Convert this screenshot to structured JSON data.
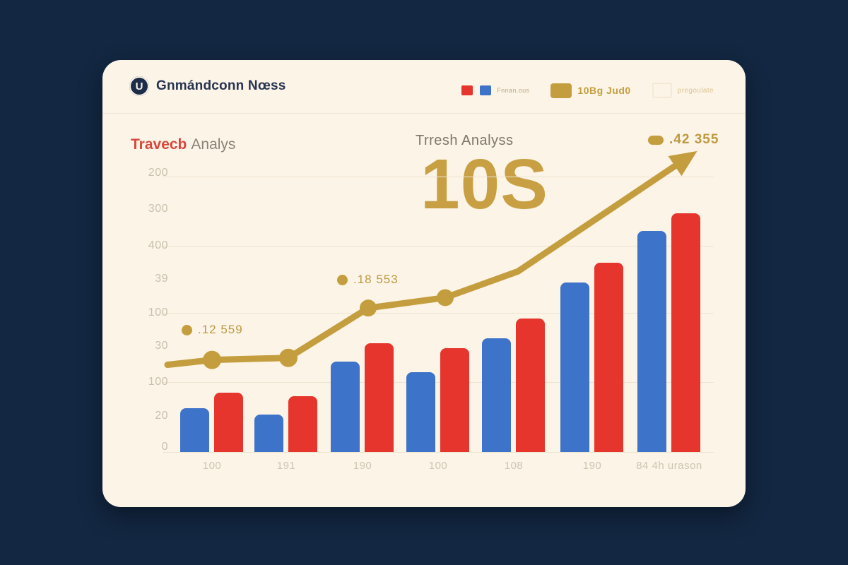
{
  "colors": {
    "page_bg": "#132742",
    "card_bg": "#fcf4e7",
    "navy": "#273450",
    "red": "#e6352d",
    "blue": "#3d73c9",
    "gold": "#c49e3e",
    "tick_label": "#c9c0ad",
    "gray_title": "#7e7769",
    "red_title": "#d8473c"
  },
  "header": {
    "logo_glyph": "U",
    "title": "Gnmándconn Nœss",
    "legend": [
      {
        "label": "Fnnan.ous"
      },
      {
        "label": "10Bg Jud0"
      },
      {
        "label": "pregoulate"
      }
    ]
  },
  "titles": {
    "left_red": "Travecb",
    "left_gray": "Analys",
    "center_sub": "Trresh Analyss",
    "center_big": "10S"
  },
  "annotations": {
    "low": ".12 559",
    "mid": ".18 553",
    "top": ".42 355"
  },
  "chart_data": {
    "type": "bar",
    "title": "Trresh Analyss 10S",
    "categories": [
      "100",
      "191",
      "190",
      "100",
      "108",
      "190",
      "84 4h urason"
    ],
    "series": [
      {
        "name": "blue bars",
        "type": "bar",
        "color": "#3d73c9",
        "values": [
          63,
          54,
          131,
          115,
          164,
          245,
          319
        ]
      },
      {
        "name": "red bars",
        "type": "bar",
        "color": "#e6352d",
        "values": [
          86,
          81,
          157,
          150,
          193,
          273,
          345
        ]
      },
      {
        "name": "gold trend line",
        "type": "line",
        "color": "#c49e3e",
        "values": [
          126,
          133,
          136,
          208,
          223,
          261,
          420
        ]
      }
    ],
    "y_ticks": [
      "200",
      "300",
      "400",
      "39",
      "100",
      "30",
      "100",
      "20",
      "0"
    ],
    "ylim": [
      0,
      400
    ],
    "grid": true,
    "legend_position": "top-right",
    "point_labels": [
      ".12 559",
      ".18 553",
      ".42 355"
    ]
  }
}
